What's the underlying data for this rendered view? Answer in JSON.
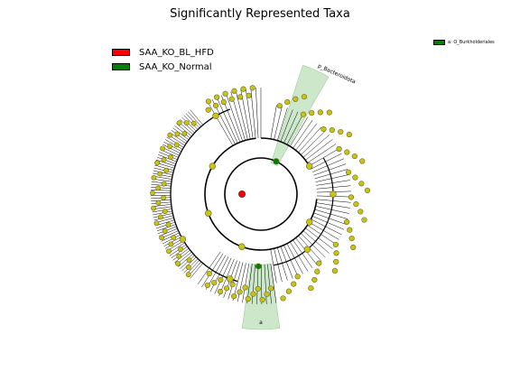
{
  "title": "Significantly Represented Taxa",
  "legend": [
    {
      "label": "SAA_KO_BL_HFD",
      "color": "#ff0000"
    },
    {
      "label": "SAA_KO_Normal",
      "color": "#008000"
    }
  ],
  "clade_legend": [
    {
      "label": "a: O_Burkholderiales",
      "color": "#008000"
    }
  ],
  "highlight_labels": [
    "p_Bacteroidota",
    "a"
  ],
  "colors": {
    "node": "#c8c21c",
    "node_stroke": "#6b6a10",
    "highlight_fill": "#6fb96a",
    "enriched_hfd": "#ff0000",
    "enriched_normal": "#008000"
  }
}
